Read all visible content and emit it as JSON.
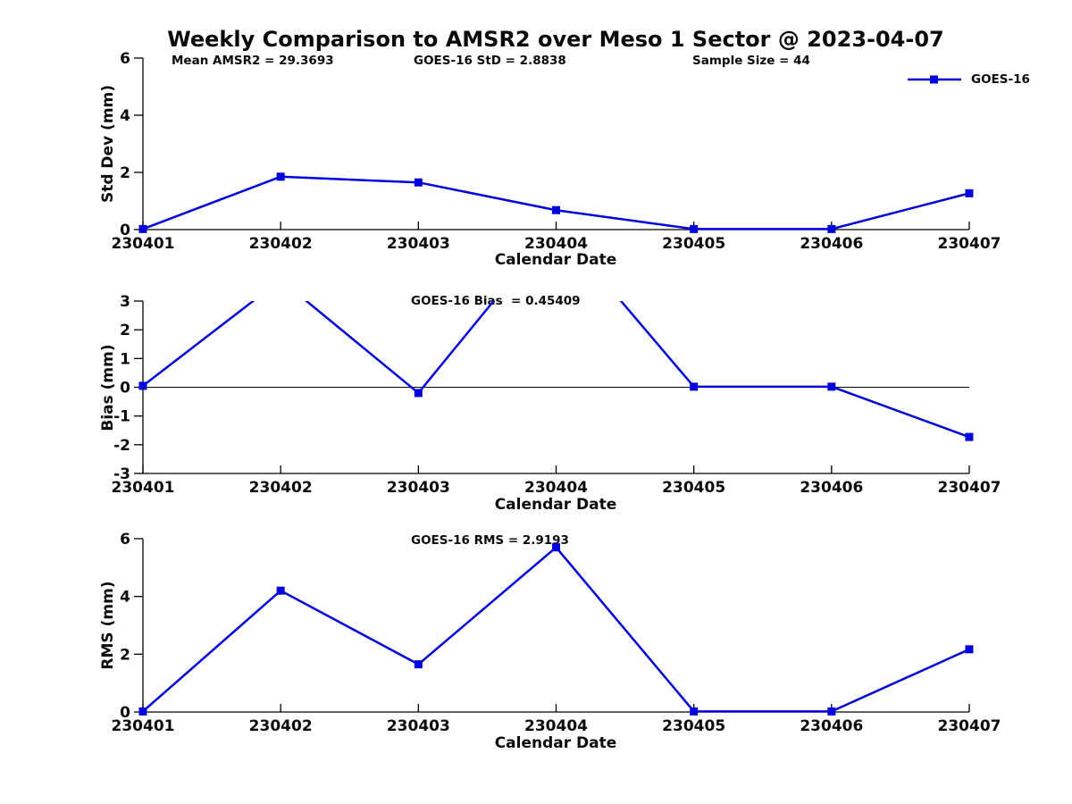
{
  "title": "Weekly Comparison to AMSR2 over Meso 1 Sector @ 2023-04-07",
  "legend": {
    "label": "GOES-16",
    "color": "#0000dd",
    "marker": "square"
  },
  "chart_data": [
    {
      "type": "line",
      "id": "stddev",
      "categories": [
        "230401",
        "230402",
        "230403",
        "230404",
        "230405",
        "230406",
        "230407"
      ],
      "series": [
        {
          "name": "GOES-16",
          "values": [
            0.02,
            1.85,
            1.65,
            0.68,
            0.02,
            0.02,
            1.27
          ]
        }
      ],
      "ylabel": "Std Dev (mm)",
      "xlabel": "Calendar Date",
      "ylim": [
        0,
        6
      ],
      "yticks": [
        0,
        2,
        4,
        6
      ],
      "grid": false,
      "legend_position": "top-right",
      "annotations": [
        "Mean AMSR2 = 29.3693",
        "GOES-16 StD = 2.8838",
        "Sample Size = 44"
      ]
    },
    {
      "type": "line",
      "id": "bias",
      "categories": [
        "230401",
        "230402",
        "230403",
        "230404",
        "230405",
        "230406",
        "230407"
      ],
      "series": [
        {
          "name": "GOES-16",
          "values": [
            0.05,
            3.74,
            -0.2,
            5.66,
            0.02,
            0.02,
            -1.73
          ]
        }
      ],
      "ylabel": "Bias (mm)",
      "xlabel": "Calendar Date",
      "ylim": [
        -3,
        3
      ],
      "yticks": [
        3,
        2,
        1,
        0,
        -1,
        -2,
        -3
      ],
      "grid": false,
      "zero_line": true,
      "clip_to_ylim": true,
      "annotation": "GOES-16 Bias  = 0.45409"
    },
    {
      "type": "line",
      "id": "rms",
      "categories": [
        "230401",
        "230402",
        "230403",
        "230404",
        "230405",
        "230406",
        "230407"
      ],
      "series": [
        {
          "name": "GOES-16",
          "values": [
            0.02,
            4.2,
            1.65,
            5.7,
            0.02,
            0.02,
            2.17
          ]
        }
      ],
      "ylabel": "RMS (mm)",
      "xlabel": "Calendar Date",
      "ylim": [
        0,
        6
      ],
      "yticks": [
        0,
        2,
        4,
        6
      ],
      "grid": false,
      "annotation": "GOES-16 RMS = 2.9193"
    }
  ]
}
